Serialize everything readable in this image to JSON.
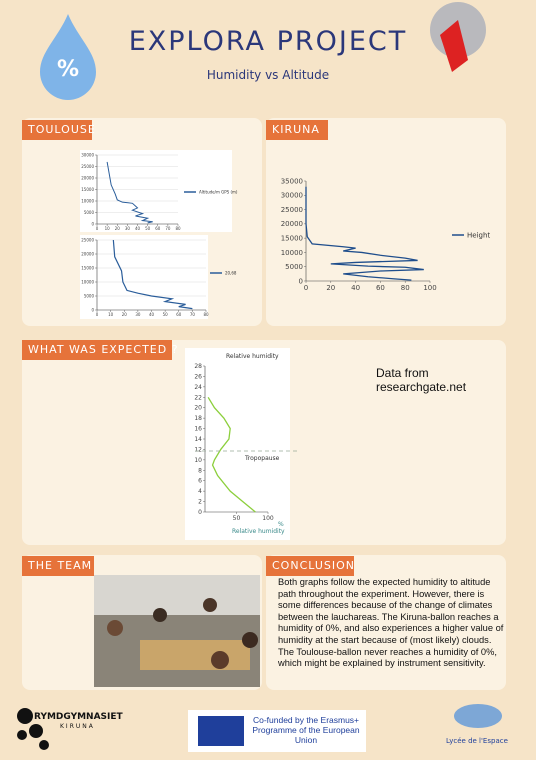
{
  "header": {
    "title": "EXPLORA PROJECT",
    "subtitle": "Humidity vs Altitude"
  },
  "toulouse": {
    "heading": "TOULOUSE",
    "charts": [
      {
        "xlim": [
          0,
          80
        ],
        "ylim": [
          0,
          30000
        ],
        "xticks": [
          0,
          10,
          20,
          30,
          40,
          50,
          60,
          70,
          80
        ],
        "yticks": [
          0,
          5000,
          10000,
          15000,
          20000,
          25000,
          30000
        ],
        "series": [
          {
            "name": "Altitude/m GPS (m)",
            "color": "#2a5d9a",
            "x": [
              10,
              12,
              14,
              18,
              20,
              25,
              35,
              40,
              35,
              45,
              38,
              50,
              45,
              55,
              50
            ],
            "y": [
              27000,
              22000,
              17000,
              13000,
              10500,
              9500,
              9000,
              7000,
              6000,
              4500,
              3500,
              2500,
              1500,
              1000,
              500
            ]
          }
        ]
      },
      {
        "xlim": [
          0,
          80
        ],
        "ylim": [
          0,
          25000
        ],
        "xticks": [
          0,
          10,
          20,
          30,
          40,
          50,
          60,
          70,
          80
        ],
        "yticks": [
          0,
          5000,
          10000,
          15000,
          20000,
          25000
        ],
        "series": [
          {
            "name": "20,68",
            "color": "#2a5d9a",
            "x": [
              12,
              13,
              18,
              19,
              22,
              30,
              40,
              55,
              50,
              65,
              60,
              70
            ],
            "y": [
              25000,
              19000,
              14000,
              10000,
              7000,
              6000,
              5000,
              4000,
              3000,
              2000,
              1200,
              500
            ]
          }
        ]
      }
    ]
  },
  "kiruna": {
    "heading": "KIRUNA",
    "chart": {
      "xlim": [
        0,
        100
      ],
      "ylim": [
        0,
        35000
      ],
      "xticks": [
        0,
        20,
        40,
        60,
        80,
        100
      ],
      "yticks": [
        0,
        5000,
        10000,
        15000,
        20000,
        25000,
        30000,
        35000
      ],
      "series": [
        {
          "name": "Height",
          "color": "#1f4e8c",
          "x": [
            0,
            0,
            1,
            5,
            30,
            40,
            30,
            45,
            60,
            80,
            90,
            40,
            20,
            50,
            80,
            95,
            60,
            30,
            50,
            70,
            85
          ],
          "y": [
            33000,
            20000,
            15500,
            13000,
            12000,
            11500,
            10500,
            10000,
            9000,
            8000,
            7200,
            6500,
            6000,
            5200,
            4800,
            4000,
            3500,
            2500,
            1500,
            800,
            300
          ]
        }
      ]
    }
  },
  "expected": {
    "heading": "WHAT WAS EXPECTED ?",
    "source": "Data from researchgate.net",
    "chart": {
      "y_label": "Relative humidity",
      "x_label": "Relative humidity",
      "x_unit": "%",
      "annotation": "Tropopause",
      "annotation_y": 11.7,
      "xlim": [
        0,
        100
      ],
      "ylim": [
        0,
        28
      ],
      "xticks": [
        50,
        100
      ],
      "yticks": [
        0,
        2,
        4,
        6,
        8,
        10,
        12,
        14,
        16,
        18,
        20,
        22,
        24,
        26,
        28
      ],
      "series": [
        {
          "color": "#8ccf3c",
          "x": [
            80,
            60,
            40,
            20,
            12,
            15,
            25,
            38,
            40,
            30,
            15,
            5
          ],
          "y": [
            0,
            2,
            4,
            7,
            9,
            10,
            12,
            14,
            16,
            18,
            20,
            22
          ]
        }
      ]
    }
  },
  "team": {
    "heading": "THE TEAM"
  },
  "conclusion": {
    "heading": "CONCLUSION",
    "text": "Both graphs follow the expected humidity to altitude path throughout the experiment. However, there is some differences because of the change of climates between the lauchareas. The Kiruna-ballon reaches a humidity of 0%, and also experiences a higher value of humidity at the start because of (most likely) clouds. The Toulouse-ballon never reaches a humidity of 0%, which might be explained by instrument sensitivity."
  },
  "footer": {
    "school": "RYMDGYMNASIET",
    "town": "KIRUNA",
    "eu": "Co-funded by the Erasmus+ Programme of the European Union",
    "lycee": "Lycée de l'Espace"
  }
}
